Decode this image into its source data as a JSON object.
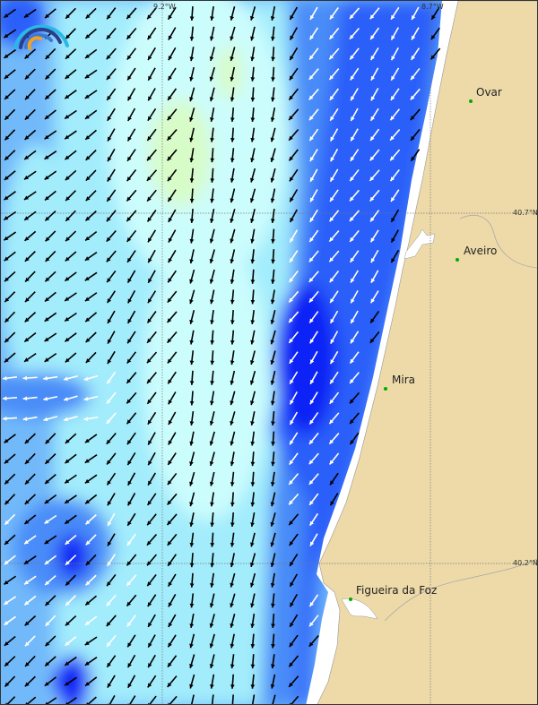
{
  "map": {
    "grid_labels": {
      "lon_left": "9.2°W",
      "lon_right": "8.7°W",
      "lat_top": "40.7°N",
      "lat_bottom": "40.2°N"
    },
    "places": [
      {
        "name": "Ovar"
      },
      {
        "name": "Aveiro"
      },
      {
        "name": "Mira"
      },
      {
        "name": "Figueira da Foz"
      }
    ],
    "logo_icon": "wind-gauge-logo-icon",
    "arrow_direction": "toward south-southwest",
    "colors": {
      "land": "#eddaa8",
      "sea_lightest": "#ccfdfd",
      "sea_light": "#a2ecfc",
      "sea_mid": "#72b9fa",
      "sea_blue": "#4a8cf8",
      "sea_strong": "#2a5ef9",
      "sea_max": "#1020f6",
      "low_wind": "#d8fcc8",
      "place_dot": "#00a000"
    }
  }
}
